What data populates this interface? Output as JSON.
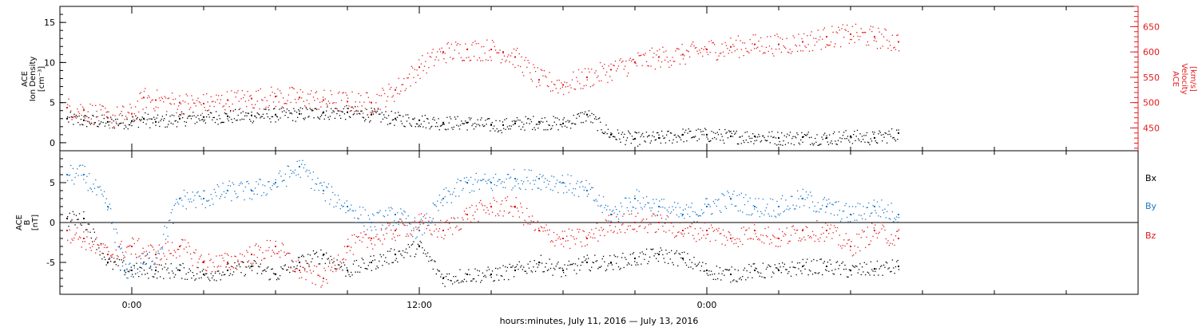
{
  "colors": {
    "black": "#000000",
    "red": "#e31a1c",
    "blue": "#1f78c8"
  },
  "chart_data": [
    {
      "type": "scatter",
      "panel": "top",
      "ylabel_left": [
        "ACE",
        "Ion Density",
        "[cm⁻³]"
      ],
      "ylabel_right": [
        "ACE",
        "Velocity",
        "[km/s]"
      ],
      "y_left_ticks": [
        "0",
        "5",
        "10",
        "15"
      ],
      "y_left_lim": [
        -1,
        17
      ],
      "y_right_ticks": [
        "450",
        "500",
        "550",
        "600",
        "650"
      ],
      "y_right_lim": [
        405,
        690
      ],
      "xlim_hours": [
        -3,
        42
      ],
      "series": [
        {
          "color": "black",
          "axis": "left",
          "x": [
            -2.7,
            -2,
            -1,
            0,
            0.5,
            1,
            2,
            3,
            4,
            5,
            6,
            7,
            8,
            9,
            10,
            11,
            12,
            13,
            14,
            15,
            15.5,
            16,
            17,
            18,
            19,
            20,
            21,
            22,
            23,
            24,
            25,
            26,
            27,
            28,
            29,
            30,
            31,
            32
          ],
          "y": [
            3,
            2.8,
            2.6,
            2.7,
            3,
            2.6,
            3,
            3.2,
            3.3,
            3.4,
            3.5,
            3.6,
            3.8,
            3.8,
            3.5,
            3,
            2.8,
            2.5,
            2.5,
            2.2,
            2.2,
            2.4,
            2.6,
            2.4,
            3.5,
            1,
            0.5,
            0.6,
            1,
            1,
            0.8,
            0.8,
            0.6,
            0.7,
            0.6,
            0.8,
            0.6,
            1.2
          ]
        },
        {
          "color": "red",
          "axis": "right",
          "x": [
            -2.7,
            -2,
            -1,
            0,
            0.5,
            1,
            2,
            3,
            4,
            5,
            6,
            7,
            8,
            9,
            10,
            11,
            12,
            13,
            14,
            15,
            15.5,
            16,
            17,
            18,
            19,
            20,
            21,
            22,
            23,
            24,
            25,
            26,
            27,
            28,
            29,
            30,
            31,
            32
          ],
          "y": [
            490,
            485,
            470,
            478,
            510,
            505,
            500,
            498,
            505,
            508,
            512,
            510,
            505,
            502,
            500,
            525,
            570,
            600,
            605,
            605,
            600,
            590,
            545,
            535,
            550,
            565,
            580,
            590,
            595,
            605,
            610,
            615,
            615,
            620,
            630,
            635,
            630,
            620
          ]
        }
      ]
    },
    {
      "type": "scatter",
      "panel": "bottom",
      "ylabel": [
        "ACE",
        "B",
        "[nT]"
      ],
      "y_ticks": [
        "-5",
        "0",
        "5"
      ],
      "ylim": [
        -9,
        9
      ],
      "xlim_hours": [
        -3,
        42
      ],
      "x_ticks": [
        "0:00",
        "12:00",
        "0:00"
      ],
      "x_tick_hours": [
        0,
        12,
        24
      ],
      "xlabel": "hours:minutes, July 11, 2016 — July 13, 2016",
      "legend": [
        "Bx",
        "By",
        "Bz"
      ],
      "series": [
        {
          "name": "Bx",
          "color": "black",
          "x": [
            -2.7,
            -2,
            -1,
            0,
            1,
            2,
            3,
            4,
            5,
            6,
            7,
            8,
            9,
            10,
            11,
            12,
            13,
            14,
            15,
            16,
            17,
            18,
            19,
            20,
            21,
            22,
            23,
            24,
            25,
            26,
            27,
            28,
            29,
            30,
            31,
            32
          ],
          "y": [
            0.5,
            0.5,
            -5,
            -6,
            -6,
            -6,
            -6.5,
            -6,
            -5.5,
            -6.5,
            -5,
            -4,
            -6,
            -5,
            -4,
            -3,
            -7,
            -6.5,
            -6.5,
            -6,
            -5,
            -6,
            -5,
            -5,
            -4.5,
            -4,
            -4.5,
            -6,
            -6.5,
            -6,
            -6,
            -5.5,
            -5.5,
            -6,
            -5.8,
            -5.5
          ]
        },
        {
          "name": "By",
          "color": "blue",
          "x": [
            -2.7,
            -2,
            -1,
            -0.3,
            0.5,
            1,
            2,
            3,
            4,
            5,
            6,
            7,
            8,
            9,
            10,
            11,
            12,
            13,
            14,
            15,
            16,
            17,
            18,
            19,
            20,
            21,
            22,
            23,
            24,
            25,
            26,
            27,
            28,
            29,
            30,
            31,
            32
          ],
          "y": [
            6,
            6,
            2,
            -6,
            -5,
            -4,
            3,
            3,
            4,
            4,
            5,
            7,
            4,
            2,
            0,
            1,
            -1,
            3,
            5,
            5,
            5.5,
            5.5,
            5,
            4,
            1,
            3,
            2,
            1,
            2,
            3,
            2,
            2,
            3,
            2,
            1,
            2,
            1
          ]
        },
        {
          "name": "Bz",
          "color": "red",
          "x": [
            -2.7,
            -2,
            -1,
            0,
            1,
            2,
            3,
            4,
            5,
            6,
            7,
            8,
            9,
            10,
            11,
            12,
            13,
            14,
            15,
            16,
            17,
            18,
            19,
            20,
            21,
            22,
            23,
            24,
            25,
            26,
            27,
            28,
            29,
            30,
            31,
            32
          ],
          "y": [
            -1,
            -2,
            -4,
            -3,
            -4,
            -3,
            -5,
            -5,
            -4,
            -3,
            -6,
            -7,
            -3,
            -2,
            -1,
            0,
            -1,
            1,
            2,
            2,
            -1,
            -2,
            -2,
            0,
            0,
            0,
            -1,
            -1,
            -2,
            -1,
            -2,
            -1,
            -1,
            -3,
            -1,
            -2
          ]
        }
      ]
    }
  ]
}
